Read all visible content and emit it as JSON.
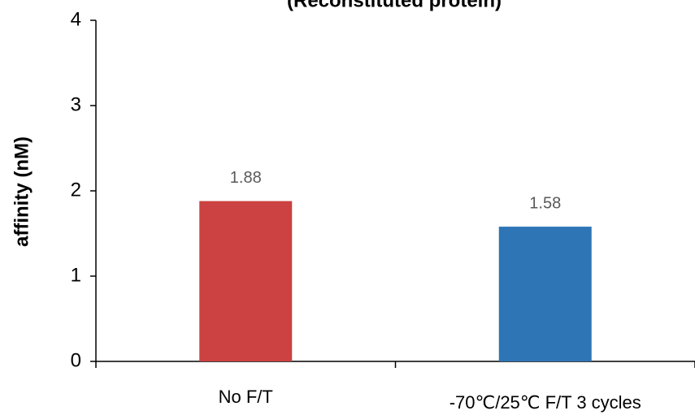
{
  "chart_data": {
    "type": "bar",
    "title": "(Reconstituted protein)",
    "y_label": "affinity (nM)",
    "categories": [
      "No F/T",
      "-70℃/25℃ F/T 3 cycles"
    ],
    "values": [
      1.88,
      1.58
    ],
    "colors": [
      "#cc4141",
      "#2e75b6"
    ],
    "ylim": [
      0,
      4
    ],
    "yticks": [
      0,
      1,
      2,
      3,
      4
    ]
  }
}
